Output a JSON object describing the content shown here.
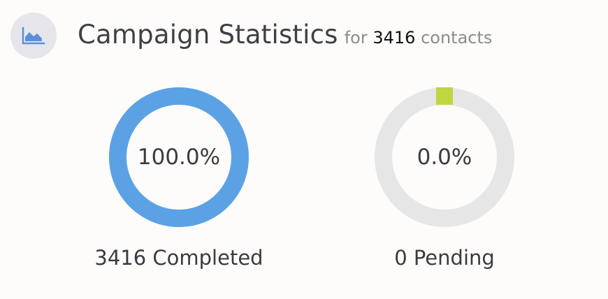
{
  "header": {
    "icon": "area-chart-icon",
    "title": "Campaign Statistics",
    "subtitle_prefix": "for",
    "contact_count": "3416",
    "subtitle_suffix": "contacts"
  },
  "colors": {
    "completed": "#5ba2e5",
    "pending": "#c3d441",
    "track": "#e6e6e6",
    "icon": "#5b8fd8"
  },
  "stats": [
    {
      "key": "completed",
      "percent_text": "100.0%",
      "fraction": 1.0,
      "label": "3416 Completed"
    },
    {
      "key": "pending",
      "percent_text": "0.0%",
      "fraction": 0.0,
      "label": "0 Pending"
    }
  ]
}
